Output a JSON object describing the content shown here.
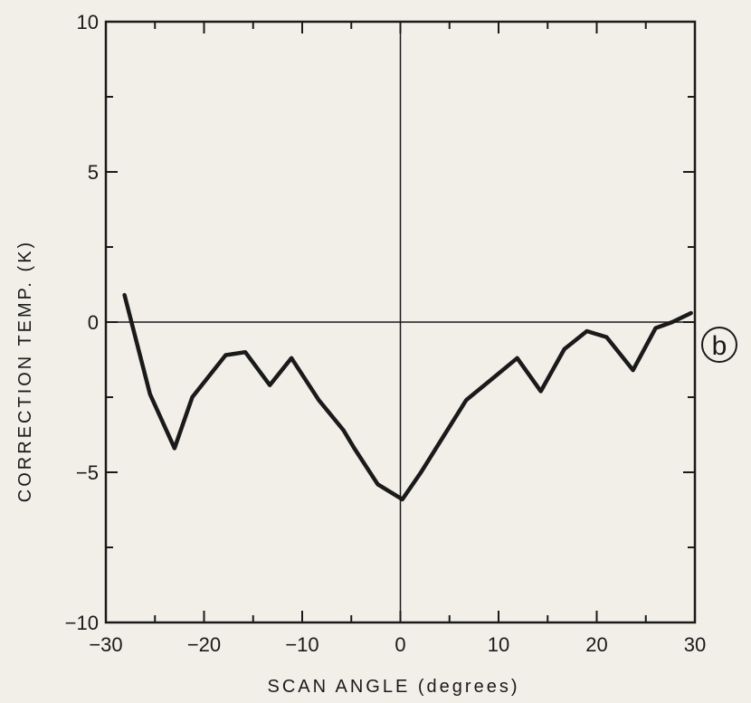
{
  "chart_data": {
    "type": "line",
    "xlabel": "SCAN ANGLE (degrees)",
    "ylabel": "CORRECTION TEMP. (K)",
    "panel_label": "b",
    "xlim": [
      -30,
      30
    ],
    "ylim": [
      -10,
      10
    ],
    "x_ticks": [
      -30,
      -20,
      -10,
      0,
      10,
      20,
      30
    ],
    "y_ticks": [
      -10,
      -5,
      0,
      5,
      10
    ],
    "x_tick_labels": [
      "−30",
      "−20",
      "−10",
      "0",
      "10",
      "20",
      "30"
    ],
    "y_tick_labels": [
      "−10",
      "−5",
      "0",
      "5",
      "10"
    ],
    "grid": false,
    "reference_lines": {
      "x": 0,
      "y": 0
    },
    "series": [
      {
        "x": [
          -28.1,
          -25.5,
          -23.0,
          -21.2,
          -17.8,
          -15.8,
          -13.3,
          -11.1,
          -8.3,
          -5.8,
          -4.7,
          -2.3,
          0.2,
          2.1,
          4.2,
          6.7,
          9.3,
          11.9,
          14.3,
          16.7,
          19.0,
          21.0,
          23.7,
          26.0,
          27.7,
          29.6
        ],
        "y": [
          0.9,
          -2.4,
          -4.2,
          -2.5,
          -1.1,
          -1.0,
          -2.1,
          -1.2,
          -2.6,
          -3.6,
          -4.2,
          -5.4,
          -5.9,
          -5.0,
          -3.9,
          -2.6,
          -1.9,
          -1.2,
          -2.3,
          -0.9,
          -0.3,
          -0.5,
          -1.6,
          -0.2,
          0.0,
          0.3
        ]
      }
    ]
  }
}
